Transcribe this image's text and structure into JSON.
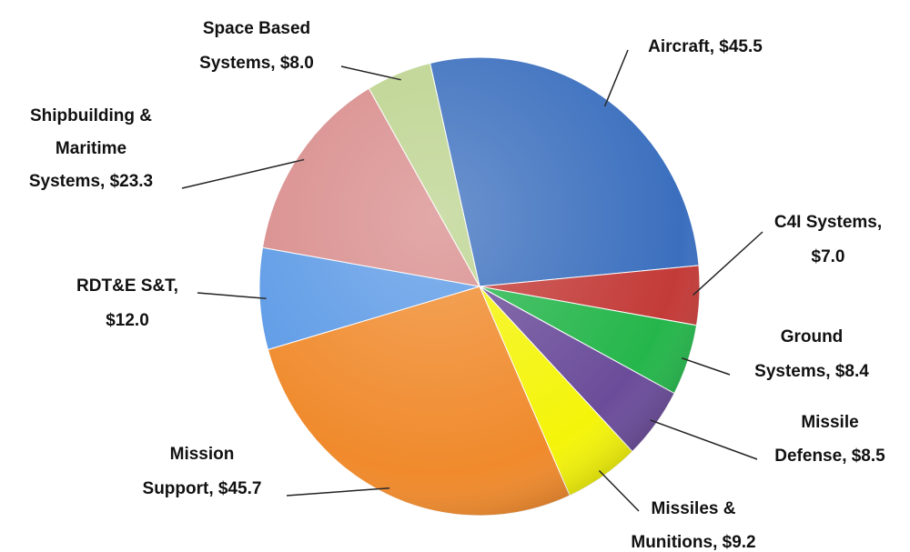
{
  "chart_data": {
    "type": "pie",
    "categories": [
      "Aircraft",
      "C4I Systems",
      "Ground Systems",
      "Missile Defense",
      "Missiles & Munitions",
      "Mission Support",
      "RDT&E S&T",
      "Shipbuilding & Maritime Systems",
      "Space Based Systems"
    ],
    "values": [
      45.5,
      7.0,
      8.4,
      8.5,
      9.2,
      45.7,
      12.0,
      23.3,
      8.0
    ],
    "labels": [
      [
        "Aircraft, $45.5"
      ],
      [
        "C4I Systems,",
        "$7.0"
      ],
      [
        "Ground",
        "Systems, $8.4"
      ],
      [
        "Missile",
        "Defense, $8.5"
      ],
      [
        "Missiles &",
        "Munitions, $9.2"
      ],
      [
        "Mission",
        "Support, $45.7"
      ],
      [
        "RDT&E S&T,",
        "$12.0"
      ],
      [
        "Shipbuilding &",
        "Maritime",
        "Systems, $23.3"
      ],
      [
        "Space Based",
        "Systems, $8.0"
      ]
    ],
    "colors": [
      "#3b6fbe",
      "#c33b38",
      "#25b64b",
      "#6b4c9a",
      "#f4f40a",
      "#f08a2c",
      "#5c9ae6",
      "#d88c8b",
      "#bcd38e"
    ]
  }
}
